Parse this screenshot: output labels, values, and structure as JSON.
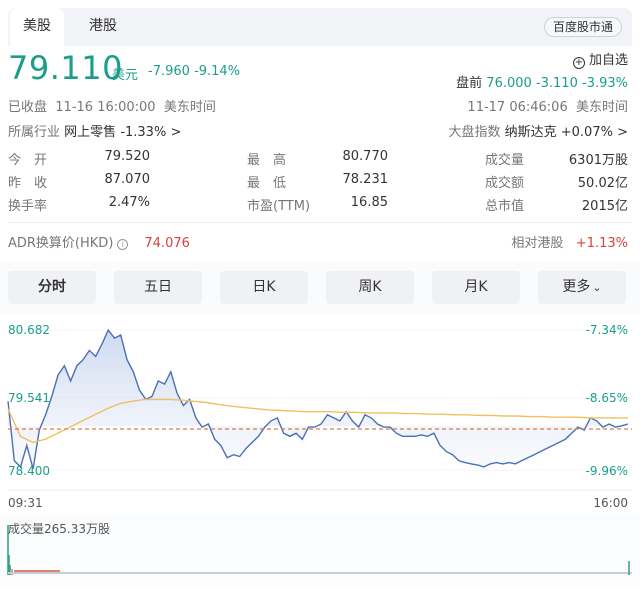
{
  "market_tabs": [
    {
      "label": "美股",
      "active": true
    },
    {
      "label": "港股",
      "active": false
    }
  ],
  "stock_connect_label": "百度股市通",
  "quote": {
    "price": "79.110",
    "unit": "美元",
    "change": "-7.960",
    "change_pct": "-9.14%",
    "status": "已收盘",
    "status_time": "11-16 16:00:00",
    "timezone": "美东时间"
  },
  "watchlist": {
    "icon": "plus-circle-icon",
    "label": "加自选"
  },
  "premarket": {
    "label": "盘前",
    "price": "76.000",
    "change": "-3.110",
    "change_pct": "-3.93%",
    "time": "11-17 06:46:06",
    "timezone": "美东时间"
  },
  "industry": {
    "label": "所属行业",
    "name": "网上零售",
    "change": "-1.33%",
    "arrow": ">"
  },
  "index": {
    "label": "大盘指数",
    "name": "纳斯达克",
    "change": "+0.07%",
    "arrow": ">"
  },
  "stats": [
    {
      "label": "今　开",
      "value": "79.520",
      "color": "green"
    },
    {
      "label": "最　高",
      "value": "80.770",
      "color": "green"
    },
    {
      "label": "成交量",
      "value": "6301万股",
      "color": "normal"
    },
    {
      "label": "昨　收",
      "value": "87.070",
      "color": "normal"
    },
    {
      "label": "最　低",
      "value": "78.231",
      "color": "green"
    },
    {
      "label": "成交额",
      "value": "50.02亿",
      "color": "normal"
    },
    {
      "label": "换手率",
      "value": "2.47%",
      "color": "normal"
    },
    {
      "label": "市盈(TTM)",
      "value": "16.85",
      "color": "normal"
    },
    {
      "label": "总市值",
      "value": "2015亿",
      "color": "normal"
    }
  ],
  "adr": {
    "label": "ADR换算价(HKD)",
    "icon": "info-icon",
    "value": "74.076"
  },
  "relative_hk": {
    "label": "相对港股",
    "value": "+1.13%"
  },
  "chart_tabs": [
    {
      "label": "分时",
      "active": true
    },
    {
      "label": "五日",
      "active": false
    },
    {
      "label": "日K",
      "active": false
    },
    {
      "label": "周K",
      "active": false
    },
    {
      "label": "月K",
      "active": false
    },
    {
      "label": "更多",
      "active": false,
      "dropdown": true
    }
  ],
  "colors": {
    "down_green": "#1a9e8b",
    "up_red": "#d9423c",
    "price_line": "#4a6fb5",
    "avg_line": "#f0c060",
    "ref_dash": "#d97b4a"
  },
  "chart_data": {
    "type": "line",
    "title": "分时",
    "x_labels": [
      "09:31",
      "16:00"
    ],
    "y_left_ticks": [
      "80.682",
      "79.541",
      "78.400"
    ],
    "y_right_ticks": [
      "-7.34%",
      "-8.65%",
      "-9.96%"
    ],
    "ylim": [
      78.4,
      80.682
    ],
    "reference_line": 79.11,
    "series": [
      {
        "name": "price",
        "values": [
          79.52,
          78.55,
          78.45,
          78.8,
          78.42,
          79.05,
          79.3,
          79.6,
          79.95,
          80.1,
          79.85,
          80.1,
          80.2,
          80.35,
          80.25,
          80.45,
          80.68,
          80.55,
          80.6,
          80.2,
          80.0,
          79.7,
          79.55,
          79.6,
          79.85,
          79.8,
          80.0,
          79.65,
          79.45,
          79.55,
          79.25,
          79.1,
          79.15,
          78.9,
          78.8,
          78.6,
          78.65,
          78.62,
          78.75,
          78.85,
          78.95,
          79.1,
          79.2,
          79.25,
          79.0,
          78.95,
          79.0,
          78.9,
          79.1,
          79.1,
          79.15,
          79.3,
          79.25,
          79.2,
          79.35,
          79.2,
          79.1,
          79.3,
          79.25,
          79.15,
          79.1,
          79.1,
          79.0,
          78.95,
          78.95,
          78.95,
          78.97,
          78.95,
          79.0,
          78.8,
          78.7,
          78.65,
          78.55,
          78.52,
          78.5,
          78.48,
          78.45,
          78.5,
          78.52,
          78.5,
          78.52,
          78.5,
          78.55,
          78.6,
          78.65,
          78.7,
          78.75,
          78.8,
          78.85,
          78.9,
          79.0,
          79.1,
          79.05,
          79.25,
          79.2,
          79.1,
          79.15,
          79.1,
          79.12,
          79.15
        ],
        "color": "#4a6fb5"
      },
      {
        "name": "average",
        "values": [
          79.4,
          78.95,
          78.85,
          78.9,
          79.0,
          79.1,
          79.2,
          79.3,
          79.4,
          79.48,
          79.52,
          79.55,
          79.55,
          79.55,
          79.54,
          79.52,
          79.5,
          79.47,
          79.44,
          79.42,
          79.4,
          79.38,
          79.37,
          79.36,
          79.35,
          79.35,
          79.35,
          79.34,
          79.34,
          79.33,
          79.33,
          79.33,
          79.32,
          79.32,
          79.31,
          79.31,
          79.3,
          79.3,
          79.29,
          79.29,
          79.28,
          79.28,
          79.27,
          79.27,
          79.26,
          79.26,
          79.26,
          79.25,
          79.25,
          79.25,
          79.25
        ],
        "color": "#f0c060"
      }
    ],
    "volume_label": "成交量265.33万股"
  }
}
